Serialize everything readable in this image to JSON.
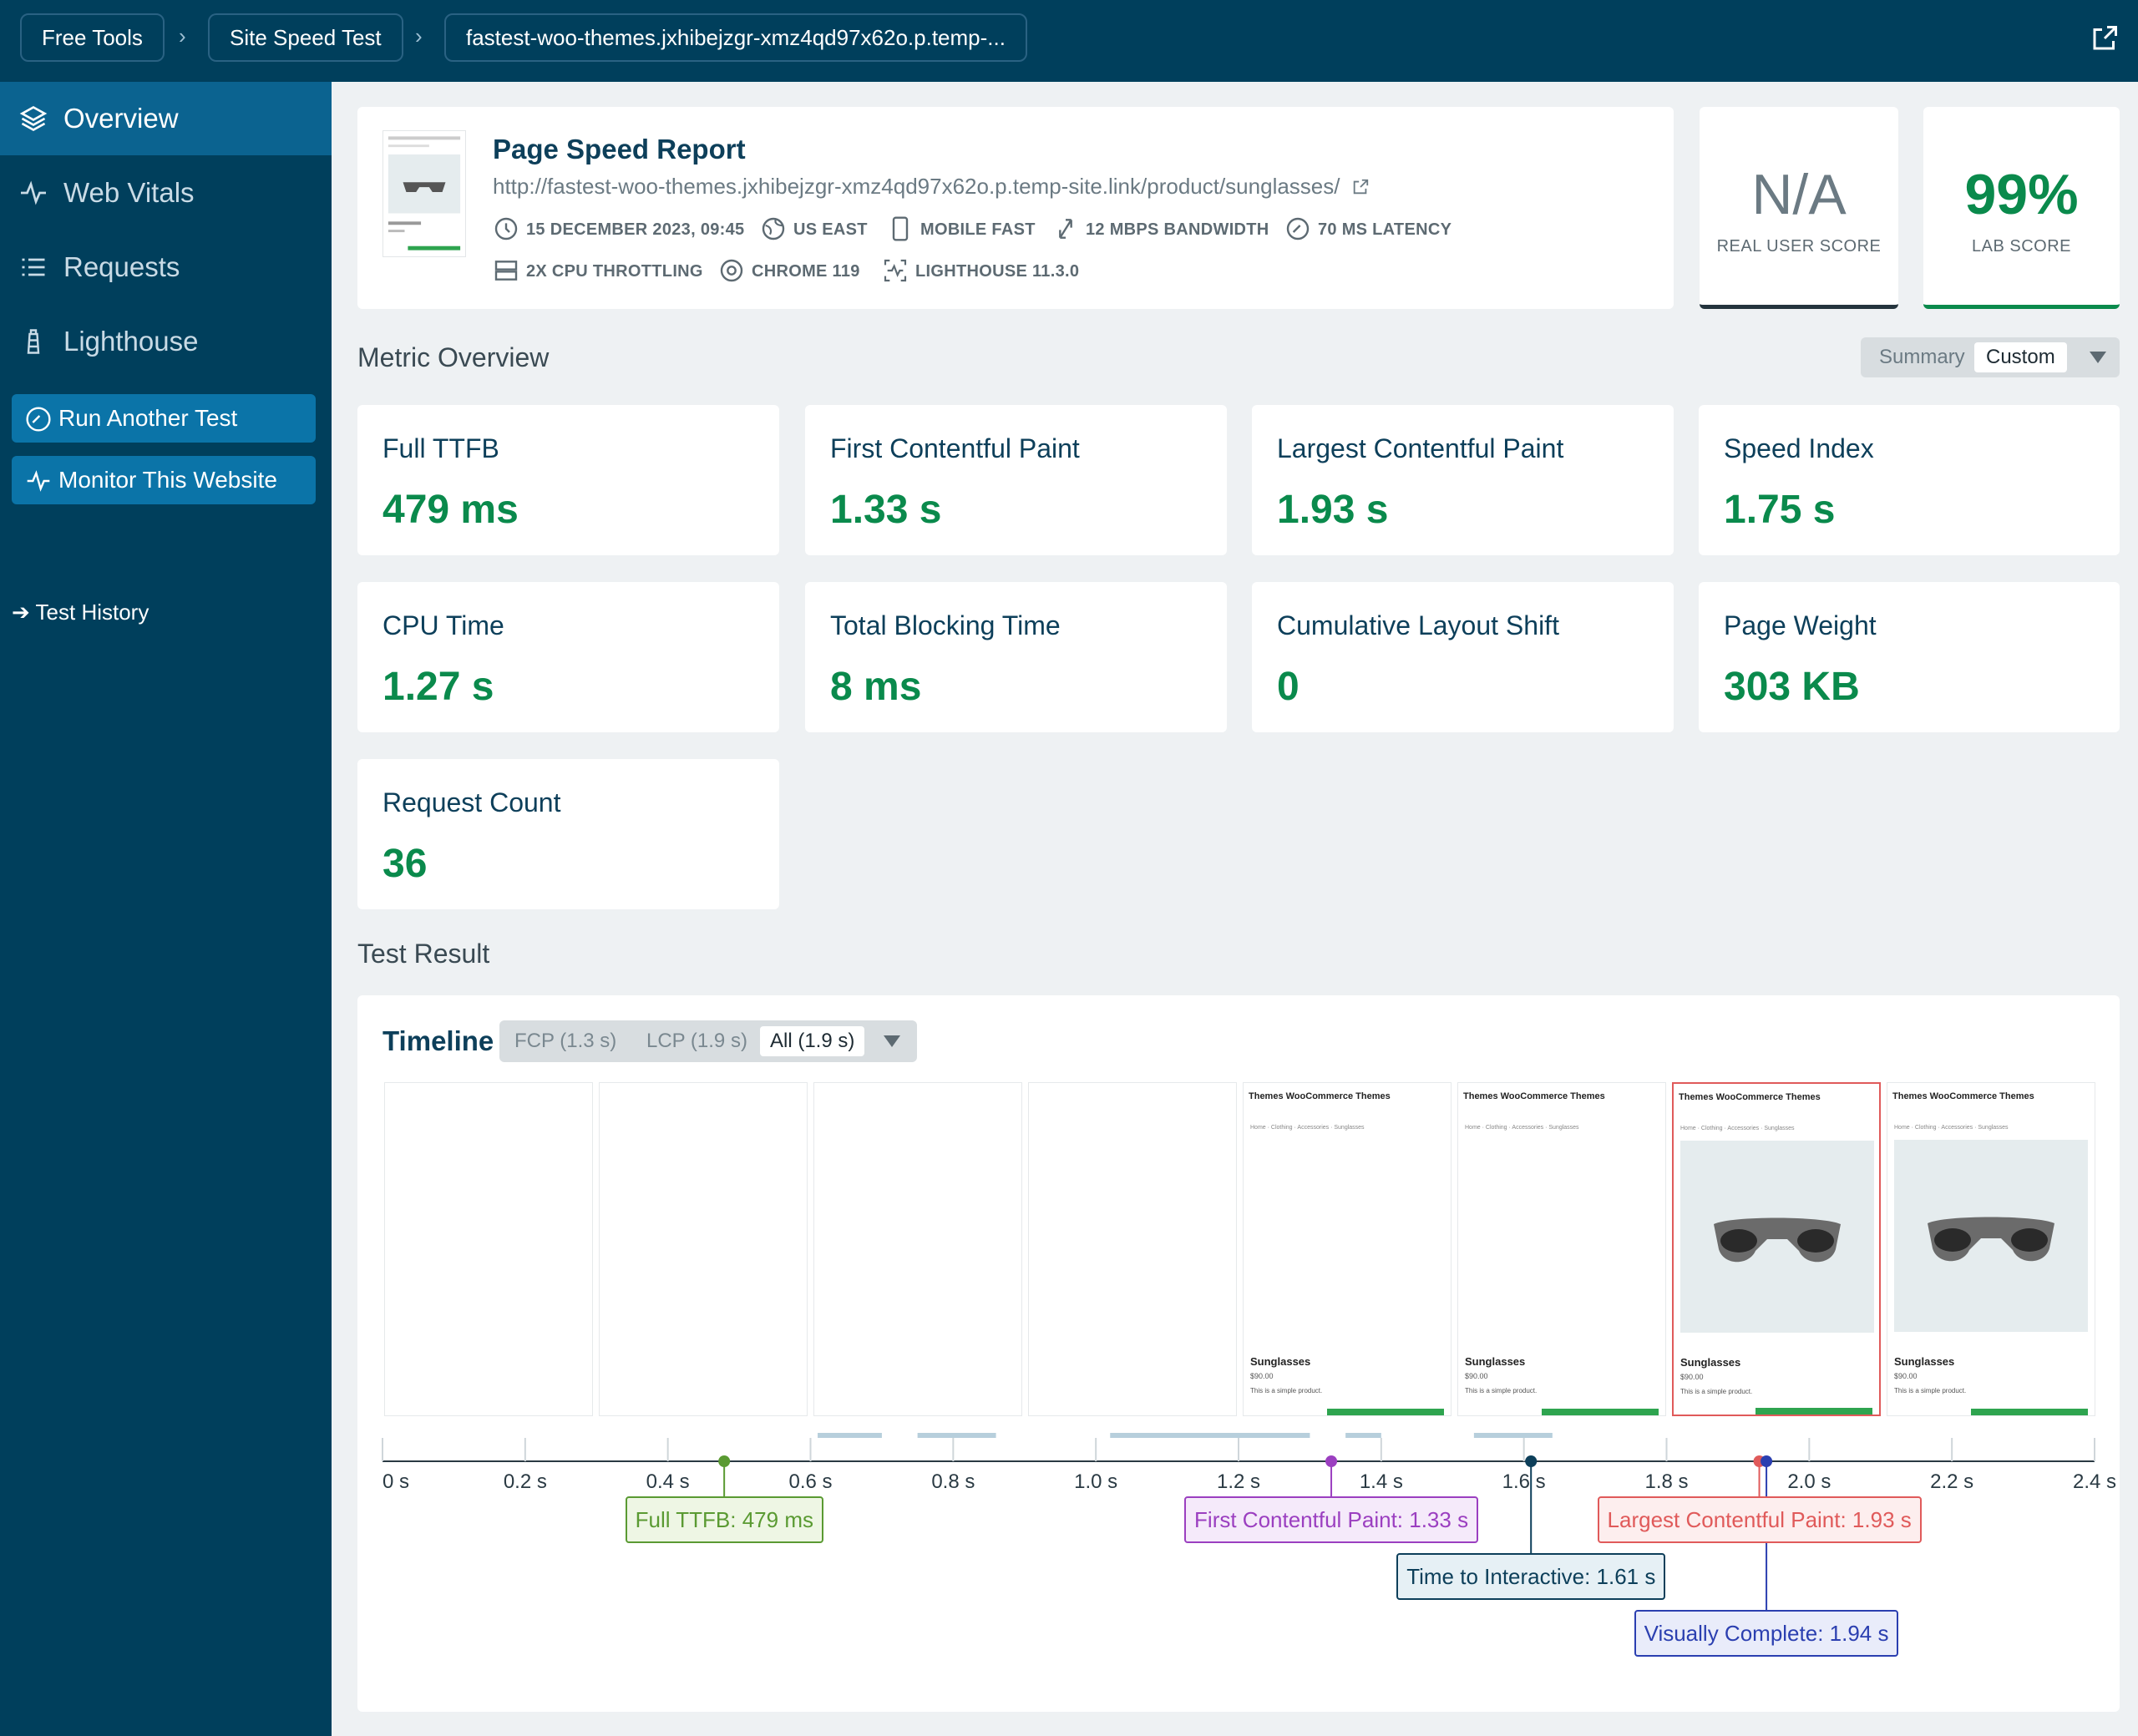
{
  "breadcrumbs": [
    "Free Tools",
    "Site Speed Test",
    "fastest-woo-themes.jxhibejzgr-xmz4qd97x62o.p.temp-..."
  ],
  "sidebar": {
    "items": [
      {
        "label": "Overview",
        "icon": "layers-icon",
        "active": true
      },
      {
        "label": "Web Vitals",
        "icon": "pulse-icon"
      },
      {
        "label": "Requests",
        "icon": "list-icon"
      },
      {
        "label": "Lighthouse",
        "icon": "lighthouse-icon"
      }
    ],
    "run_test": "Run Another Test",
    "monitor": "Monitor This Website",
    "history": "➔ Test History"
  },
  "report": {
    "title": "Page Speed Report",
    "url": "http://fastest-woo-themes.jxhibejzgr-xmz4qd97x62o.p.temp-site.link/product/sunglasses/",
    "meta": {
      "date": "15 DECEMBER 2023, 09:45",
      "location": "US EAST",
      "device": "MOBILE FAST",
      "bandwidth": "12 MBPS BANDWIDTH",
      "latency": "70 MS LATENCY",
      "cpu": "2X CPU THROTTLING",
      "browser": "CHROME 119",
      "lighthouse": "LIGHTHOUSE 11.3.0"
    }
  },
  "scores": {
    "real_user": {
      "value": "N/A",
      "label": "REAL USER SCORE"
    },
    "lab": {
      "value": "99%",
      "label": "LAB SCORE"
    }
  },
  "metric_overview": {
    "title": "Metric Overview",
    "toggle": {
      "summary": "Summary",
      "custom": "Custom",
      "selected": "Custom"
    },
    "metrics": [
      {
        "name": "Full TTFB",
        "value": "479 ms"
      },
      {
        "name": "First Contentful Paint",
        "value": "1.33 s"
      },
      {
        "name": "Largest Contentful Paint",
        "value": "1.93 s"
      },
      {
        "name": "Speed Index",
        "value": "1.75 s"
      },
      {
        "name": "CPU Time",
        "value": "1.27 s"
      },
      {
        "name": "Total Blocking Time",
        "value": "8 ms"
      },
      {
        "name": "Cumulative Layout Shift",
        "value": "0"
      },
      {
        "name": "Page Weight",
        "value": "303 KB"
      },
      {
        "name": "Request Count",
        "value": "36"
      }
    ]
  },
  "test_result": {
    "title": "Test Result",
    "timeline": {
      "title": "Timeline",
      "options": [
        "FCP (1.3 s)",
        "LCP (1.9 s)",
        "All (1.9 s)"
      ],
      "selected": "All (1.9 s)",
      "ticks": [
        "0 s",
        "0.2 s",
        "0.4 s",
        "0.6 s",
        "0.8 s",
        "1.0 s",
        "1.2 s",
        "1.4 s",
        "1.6 s",
        "1.8 s",
        "2.0 s",
        "2.2 s",
        "2.4 s"
      ],
      "frame": {
        "site_name": "Themes WooCommerce Themes",
        "crumbs": "Home · Clothing · Accessories · Sunglasses",
        "product": "Sunglasses",
        "price": "$90.00",
        "desc": "This is a simple product."
      },
      "markers": [
        {
          "label": "Full TTFB: 479 ms",
          "time": 0.479,
          "color": "#5a9a32",
          "bg": "#eef6e4"
        },
        {
          "label": "First Contentful Paint: 1.33 s",
          "time": 1.33,
          "color": "#9b3fc0",
          "bg": "#f5eafa"
        },
        {
          "label": "Time to Interactive: 1.61 s",
          "time": 1.61,
          "color": "#0d3f5a",
          "bg": "#e6f0f5"
        },
        {
          "label": "Largest Contentful Paint: 1.93 s",
          "time": 1.93,
          "color": "#e05a5a",
          "bg": "#fdeeee"
        },
        {
          "label": "Visually Complete: 1.94 s",
          "time": 1.94,
          "color": "#2b3fb0",
          "bg": "#e9ecfa"
        }
      ]
    }
  }
}
